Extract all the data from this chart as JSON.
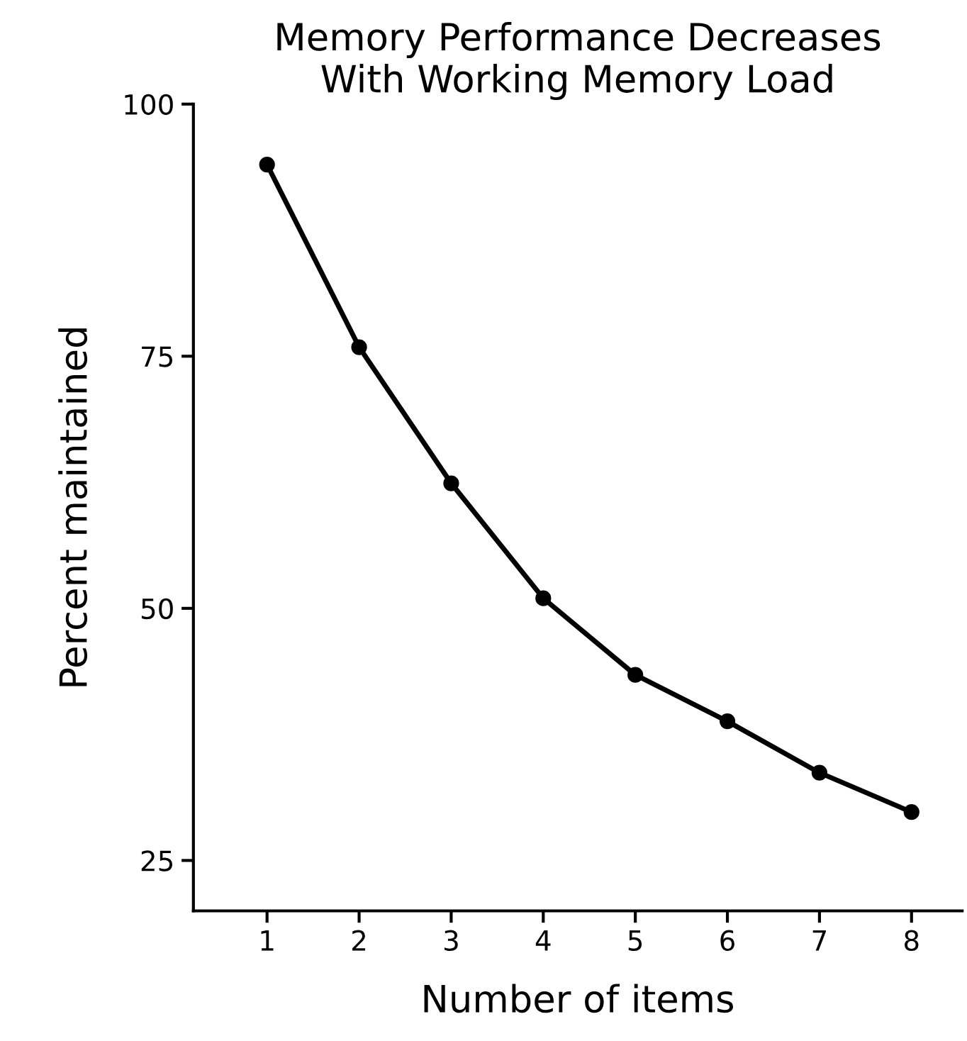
{
  "chart_data": {
    "type": "line",
    "title": "Memory Performance Decreases\nWith Working Memory Load",
    "xlabel": "Number of items",
    "ylabel": "Percent maintained",
    "x": [
      1,
      2,
      3,
      4,
      5,
      6,
      7,
      8
    ],
    "series": [
      {
        "color": "#000000",
        "values": [
          94,
          75.9,
          62.4,
          51,
          43.4,
          38.8,
          33.7,
          29.8
        ]
      }
    ],
    "xlim": [
      0.2,
      8.55
    ],
    "xticks": [
      1,
      2,
      3,
      4,
      5,
      6,
      7,
      8
    ],
    "ylim": [
      20,
      100
    ],
    "yticks": [
      25,
      50,
      75,
      100
    ],
    "grid": false,
    "marker": "circle",
    "line_style": "solid"
  }
}
